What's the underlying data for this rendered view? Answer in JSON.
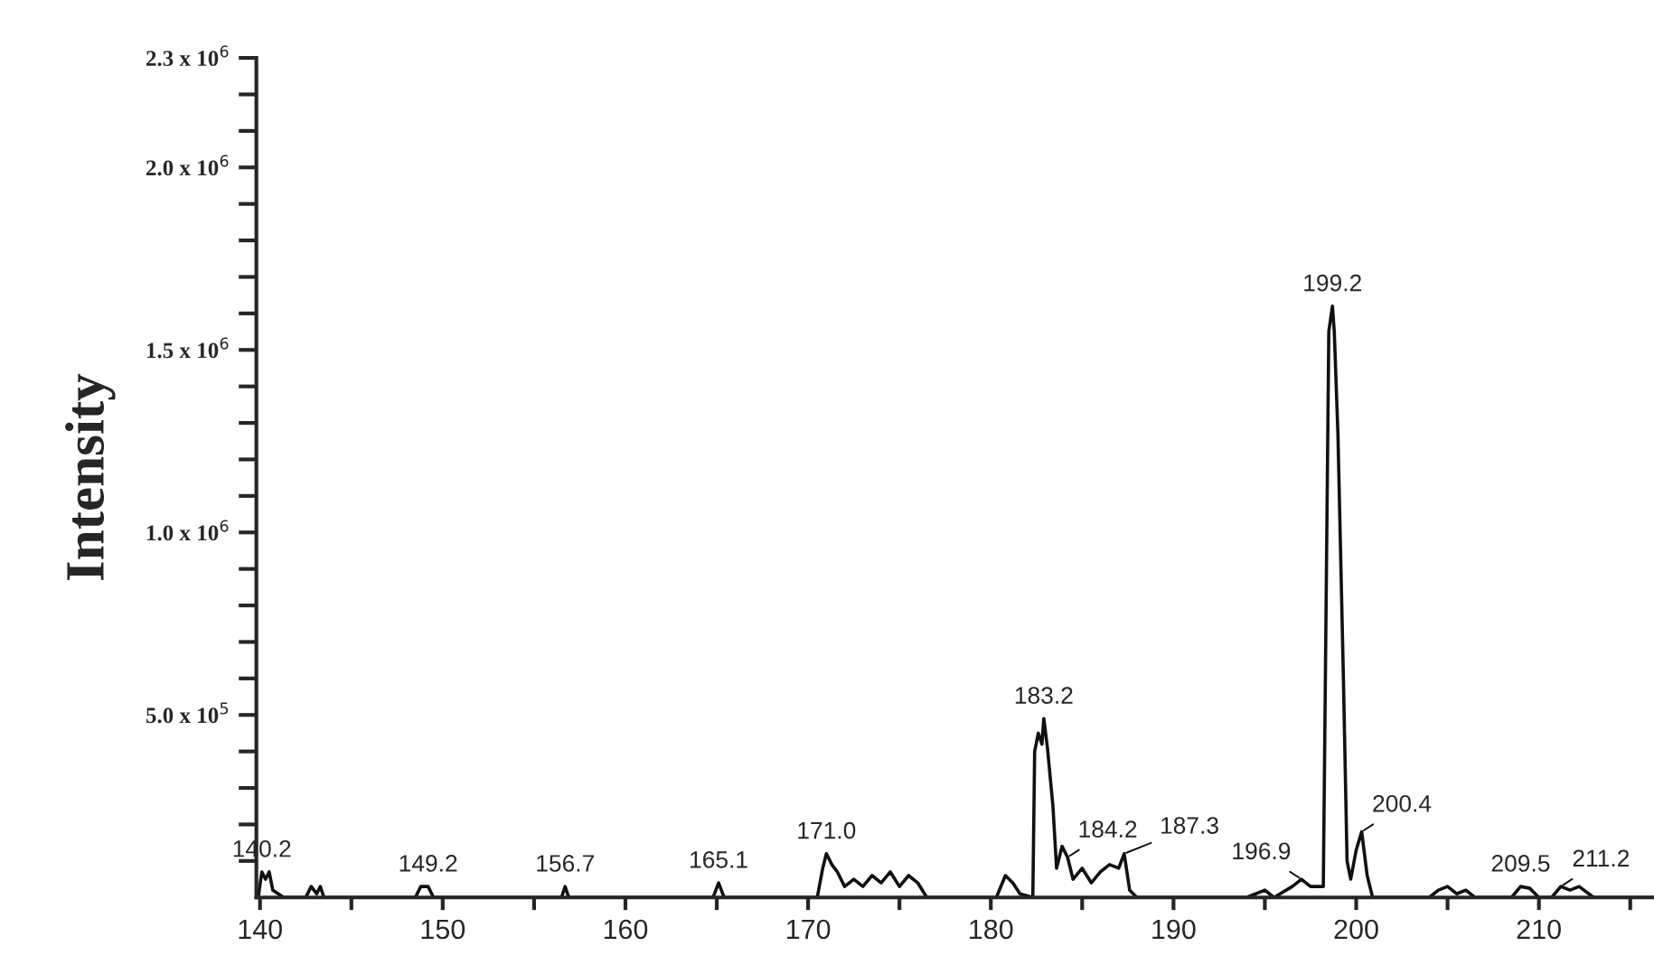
{
  "chart_data": {
    "type": "line",
    "ylabel": "Intensity",
    "series": [
      {
        "color": "#111111",
        "x": [
          139.9,
          140.1,
          140.3,
          140.5,
          140.7,
          141.0,
          141.3,
          142.5,
          142.8,
          143.1,
          143.3,
          143.5,
          148.5,
          148.8,
          149.2,
          149.5,
          156.5,
          156.7,
          156.9,
          164.8,
          165.1,
          165.4,
          170.5,
          170.8,
          171.0,
          171.3,
          171.6,
          172.0,
          172.5,
          173.0,
          173.5,
          174.0,
          174.5,
          175.0,
          175.5,
          176.0,
          176.5,
          180.3,
          180.8,
          181.2,
          181.6,
          182.3,
          182.4,
          182.6,
          182.8,
          182.9,
          183.1,
          183.4,
          183.6,
          183.9,
          184.2,
          184.5,
          185.0,
          185.5,
          186.0,
          186.5,
          187.0,
          187.3,
          187.6,
          188.0,
          194.0,
          195.0,
          195.5,
          196.5,
          197.0,
          197.5,
          198.2,
          198.5,
          198.7,
          198.8,
          199.0,
          199.3,
          199.5,
          199.7,
          200.0,
          200.3,
          200.6,
          200.9,
          204.0,
          204.5,
          205.0,
          205.5,
          206.0,
          206.5,
          208.5,
          209.0,
          209.5,
          210.0,
          210.7,
          211.2,
          211.7,
          212.2,
          213.0,
          216.3
        ],
        "values": [
          0,
          70000,
          50000,
          70000,
          20000,
          10000,
          0,
          0,
          30000,
          10000,
          30000,
          0,
          0,
          30000,
          30000,
          0,
          0,
          30000,
          0,
          0,
          40000,
          0,
          0,
          80000,
          120000,
          90000,
          70000,
          30000,
          50000,
          30000,
          60000,
          40000,
          70000,
          30000,
          60000,
          40000,
          0,
          0,
          60000,
          40000,
          10000,
          0,
          400000,
          450000,
          420000,
          490000,
          410000,
          250000,
          80000,
          140000,
          110000,
          50000,
          80000,
          40000,
          70000,
          90000,
          80000,
          120000,
          20000,
          0,
          0,
          20000,
          0,
          30000,
          50000,
          30000,
          30000,
          1550000,
          1620000,
          1550000,
          1270000,
          600000,
          100000,
          50000,
          130000,
          180000,
          60000,
          0,
          0,
          20000,
          30000,
          10000,
          20000,
          0,
          0,
          30000,
          25000,
          0,
          0,
          30000,
          20000,
          30000,
          0,
          0
        ]
      }
    ],
    "annotations": [
      {
        "text": "140.2",
        "x": 140.1,
        "y": 70000
      },
      {
        "text": "149.2",
        "x": 149.2,
        "y": 30000
      },
      {
        "text": "156.7",
        "x": 156.7,
        "y": 30000
      },
      {
        "text": "165.1",
        "x": 165.1,
        "y": 40000
      },
      {
        "text": "171.0",
        "x": 171.0,
        "y": 120000
      },
      {
        "text": "183.2",
        "x": 182.9,
        "y": 490000
      },
      {
        "text": "184.2",
        "x": 184.2,
        "y": 110000
      },
      {
        "text": "187.3",
        "x": 187.3,
        "y": 120000
      },
      {
        "text": "196.9",
        "x": 197.0,
        "y": 50000
      },
      {
        "text": "199.2",
        "x": 198.7,
        "y": 1620000
      },
      {
        "text": "200.4",
        "x": 200.3,
        "y": 180000
      },
      {
        "text": "209.5",
        "x": 209.0,
        "y": 30000
      },
      {
        "text": "211.2",
        "x": 211.2,
        "y": 30000
      }
    ],
    "xlim": [
      139.8,
      216.3
    ],
    "xticks": [
      140,
      {
        "value": 145,
        "label": null
      },
      150,
      {
        "value": 155,
        "label": null
      },
      160,
      {
        "value": 165,
        "label": null
      },
      170,
      {
        "value": 175,
        "label": null
      },
      180,
      {
        "value": 185,
        "label": null
      },
      190,
      {
        "value": 195,
        "label": null
      },
      200,
      {
        "value": 205,
        "label": null
      },
      210,
      {
        "value": 215,
        "label": null
      }
    ],
    "ylim": [
      0,
      2300000
    ],
    "yticks": [
      {
        "value": 100000,
        "label": null
      },
      {
        "value": 200000,
        "label": null
      },
      {
        "value": 300000,
        "label": null
      },
      {
        "value": 400000,
        "label": null
      },
      {
        "value": 500000,
        "label": "5.0 x 10$^{5}$"
      },
      {
        "value": 600000,
        "label": null
      },
      {
        "value": 700000,
        "label": null
      },
      {
        "value": 800000,
        "label": null
      },
      {
        "value": 900000,
        "label": null
      },
      {
        "value": 1000000,
        "label": "1.0 x 10$^{6}$"
      },
      {
        "value": 1100000,
        "label": null
      },
      {
        "value": 1200000,
        "label": null
      },
      {
        "value": 1300000,
        "label": null
      },
      {
        "value": 1400000,
        "label": null
      },
      {
        "value": 1500000,
        "label": "1.5 x 10$^{6}$"
      },
      {
        "value": 1600000,
        "label": null
      },
      {
        "value": 1700000,
        "label": null
      },
      {
        "value": 1800000,
        "label": null
      },
      {
        "value": 1900000,
        "label": null
      },
      {
        "value": 2000000,
        "label": "2.0 x 10$^{6}$"
      },
      {
        "value": 2100000,
        "label": null
      },
      {
        "value": 2200000,
        "label": null
      },
      {
        "value": 2300000,
        "label": "2.3 x 10$^{6}$"
      }
    ],
    "grid": false,
    "legend": false,
    "marker": "none",
    "line_style": "solid"
  }
}
